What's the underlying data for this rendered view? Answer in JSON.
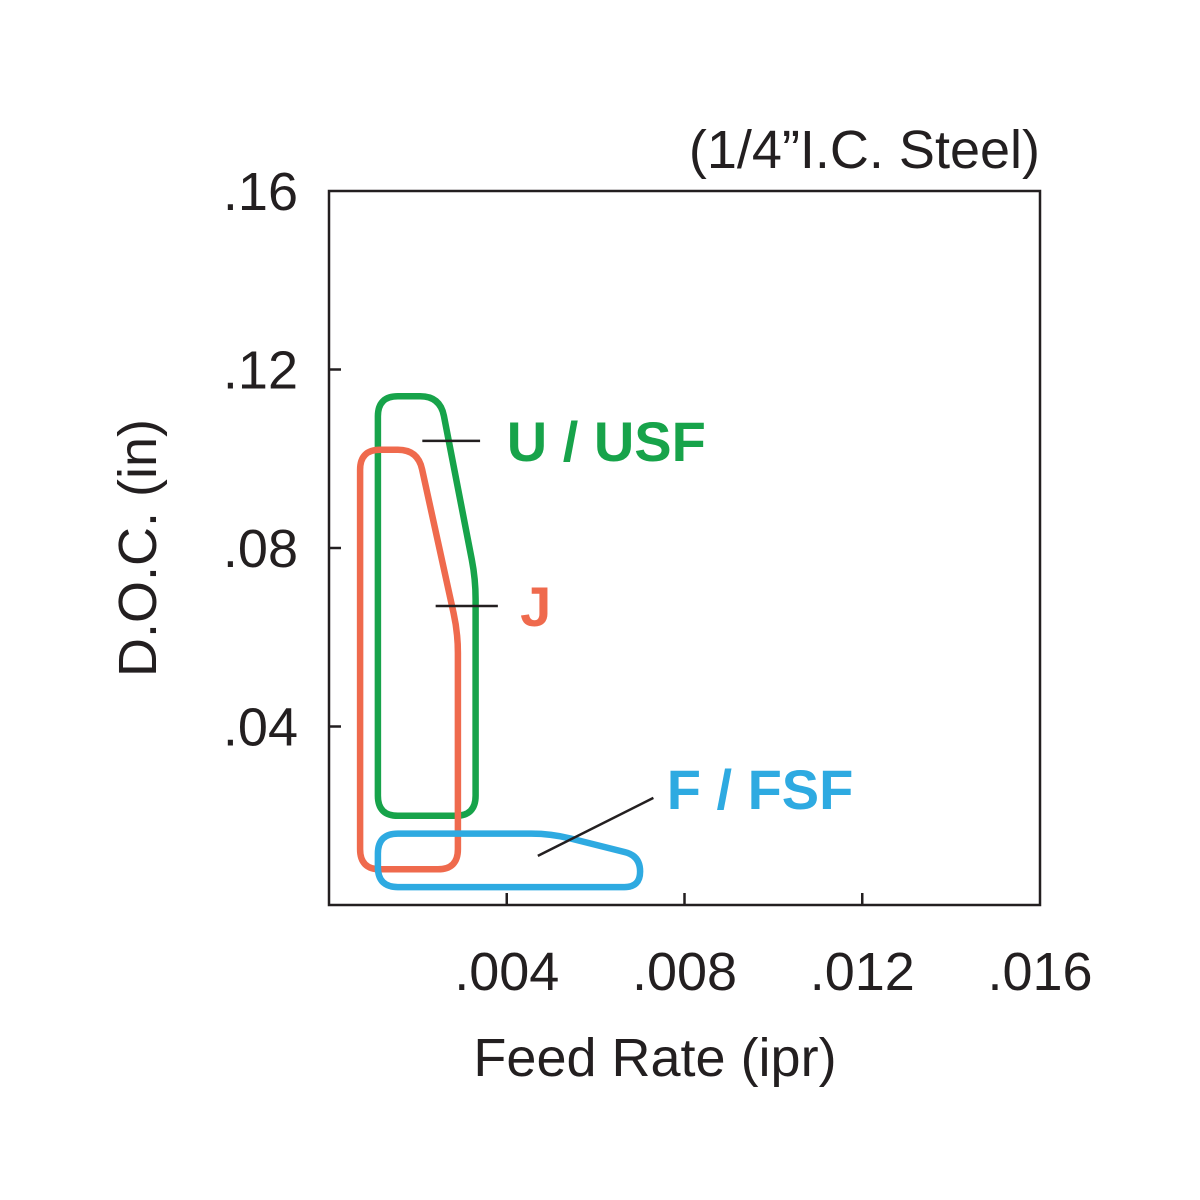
{
  "chart_data": {
    "type": "area",
    "subtitle": "(1/4”I.C. Steel)",
    "xlabel": "Feed Rate (ipr)",
    "ylabel": "D.O.C. (in)",
    "xlim": [
      0,
      0.016
    ],
    "ylim": [
      0,
      0.16
    ],
    "xticks": [
      {
        "value": 0.004,
        "label": ".004"
      },
      {
        "value": 0.008,
        "label": ".008"
      },
      {
        "value": 0.012,
        "label": ".012"
      },
      {
        "value": 0.016,
        "label": ".016"
      }
    ],
    "yticks": [
      {
        "value": 0.04,
        "label": ".04"
      },
      {
        "value": 0.08,
        "label": ".08"
      },
      {
        "value": 0.12,
        "label": ".12"
      },
      {
        "value": 0.16,
        "label": ".16"
      }
    ],
    "grid": false,
    "series": [
      {
        "name": "U / USF",
        "color": "#17a34a",
        "points": [
          [
            0.0011,
            0.02
          ],
          [
            0.0033,
            0.02
          ],
          [
            0.0033,
            0.073
          ],
          [
            0.0025,
            0.114
          ],
          [
            0.0011,
            0.114
          ]
        ],
        "leader": [
          [
            0.0021,
            0.104
          ],
          [
            0.0034,
            0.104
          ]
        ],
        "label_pos": [
          0.004,
          0.104
        ]
      },
      {
        "name": "J",
        "color": "#ef6a4d",
        "points": [
          [
            0.0007,
            0.008
          ],
          [
            0.0029,
            0.008
          ],
          [
            0.0029,
            0.061
          ],
          [
            0.002,
            0.102
          ],
          [
            0.0007,
            0.102
          ]
        ],
        "leader": [
          [
            0.0024,
            0.067
          ],
          [
            0.0038,
            0.067
          ]
        ],
        "label_pos": [
          0.0043,
          0.067
        ]
      },
      {
        "name": "F / FSF",
        "color": "#2eaae1",
        "points": [
          [
            0.0011,
            0.004
          ],
          [
            0.007,
            0.004
          ],
          [
            0.007,
            0.011
          ],
          [
            0.005,
            0.016
          ],
          [
            0.0011,
            0.016
          ]
        ],
        "leader": [
          [
            0.0047,
            0.011
          ],
          [
            0.0073,
            0.024
          ]
        ],
        "label_pos": [
          0.0076,
          0.026
        ]
      }
    ]
  }
}
